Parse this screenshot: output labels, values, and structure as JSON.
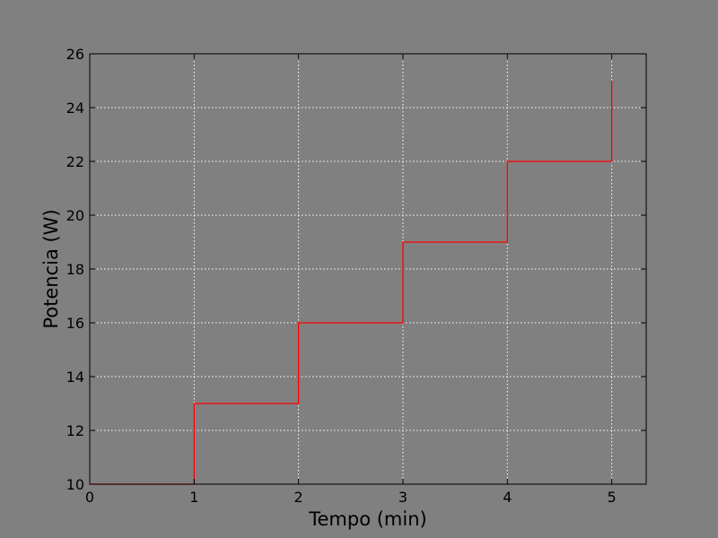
{
  "chart_data": {
    "type": "line",
    "step": "post",
    "title": "",
    "xlabel": "Tempo (min)",
    "ylabel": "Potencia (W)",
    "xlim": [
      0,
      5.33
    ],
    "ylim": [
      10,
      26
    ],
    "xticks": [
      "0",
      "1",
      "2",
      "3",
      "4",
      "5"
    ],
    "yticks": [
      "10",
      "12",
      "14",
      "16",
      "18",
      "20",
      "22",
      "24",
      "26"
    ],
    "grid": true,
    "legend": "none",
    "series": [
      {
        "color": "#ff0000",
        "x": [
          0,
          1,
          1,
          2,
          2,
          3,
          3,
          4,
          4,
          5,
          5
        ],
        "y": [
          10,
          10,
          13,
          13,
          16,
          16,
          19,
          19,
          22,
          22,
          25
        ]
      }
    ]
  },
  "style": {
    "background": "#808080",
    "axes_background": "#808080",
    "grid_color": "#ffffff",
    "axis_color": "#000000",
    "line_color": "#ff0000"
  }
}
